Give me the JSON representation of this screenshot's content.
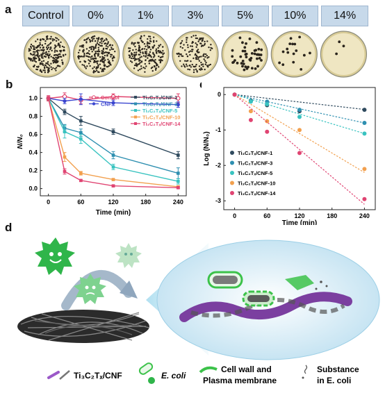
{
  "panel_a": {
    "letter": "a",
    "labels": [
      "Control",
      "0%",
      "1%",
      "3%",
      "5%",
      "10%",
      "14%"
    ]
  },
  "panel_d": {
    "letter": "d",
    "legend": {
      "material": "Ti₃C₂Tₓ/CNF",
      "ecoli": "E. coli",
      "cellwall_line1": "Cell wall and",
      "cellwall_line2": "Plasma membrane",
      "substance_line1": "Substance",
      "substance_line2": "in E. coli"
    }
  },
  "chart_data": [
    {
      "panel": "b",
      "type": "line",
      "xlabel": "Time (min)",
      "ylabel": "N/N₀",
      "x": [
        0,
        30,
        60,
        120,
        240
      ],
      "xticks": [
        0,
        60,
        120,
        180,
        240
      ],
      "yticks": [
        0.0,
        0.2,
        0.4,
        0.6,
        0.8,
        1.0
      ],
      "xlim": [
        -15,
        255
      ],
      "ylim": [
        -0.08,
        1.12
      ],
      "series": [
        {
          "name": "Control",
          "color": "#e0406a",
          "marker": "open-circle",
          "values": [
            1.0,
            1.02,
            0.98,
            1.02,
            1.0
          ],
          "errors": [
            0.03,
            0.04,
            0.04,
            0.03,
            0.05
          ]
        },
        {
          "name": "CNF",
          "color": "#3b46d0",
          "marker": "filled-circle",
          "values": [
            1.0,
            0.97,
            0.99,
            0.95,
            0.93
          ],
          "errors": [
            0.02,
            0.03,
            0.06,
            0.03,
            0.03
          ]
        },
        {
          "name": "Ti₃C₂Tₓ/CNF-1",
          "color": "#2f4a5e",
          "marker": "filled-square",
          "values": [
            1.0,
            0.85,
            0.75,
            0.63,
            0.37
          ],
          "errors": [
            0.02,
            0.03,
            0.05,
            0.03,
            0.04
          ]
        },
        {
          "name": "Ti₃C₂Tₓ/CNF-3",
          "color": "#2e8fb0",
          "marker": "filled-square",
          "values": [
            1.0,
            0.67,
            0.62,
            0.37,
            0.17
          ],
          "errors": [
            0.02,
            0.04,
            0.04,
            0.04,
            0.06
          ]
        },
        {
          "name": "Ti₃C₂Tₓ/CNF-5",
          "color": "#39c3c0",
          "marker": "filled-square",
          "values": [
            1.0,
            0.63,
            0.55,
            0.24,
            0.08
          ],
          "errors": [
            0.02,
            0.07,
            0.05,
            0.03,
            0.03
          ]
        },
        {
          "name": "Ti₃C₂Tₓ/CNF-10",
          "color": "#f2a04e",
          "marker": "filled-square",
          "values": [
            1.0,
            0.35,
            0.17,
            0.1,
            0.02
          ],
          "errors": [
            0.02,
            0.05,
            0.02,
            0.01,
            0.01
          ]
        },
        {
          "name": "Ti₃C₂Tₓ/CNF-14",
          "color": "#e04472",
          "marker": "filled-square",
          "values": [
            1.0,
            0.19,
            0.09,
            0.03,
            0.01
          ],
          "errors": [
            0.02,
            0.03,
            0.01,
            0.01,
            0.01
          ]
        }
      ]
    },
    {
      "panel": "c",
      "type": "scatter",
      "xlabel": "Time (min)",
      "ylabel": "Log (N/N₀)",
      "x": [
        0,
        30,
        60,
        120,
        240
      ],
      "xticks": [
        0,
        60,
        120,
        180,
        240
      ],
      "yticks": [
        0,
        -1,
        -2,
        -3
      ],
      "xlim": [
        -20,
        260
      ],
      "ylim": [
        -3.25,
        0.2
      ],
      "series": [
        {
          "name": "Ti₃C₂Tₓ/CNF-1",
          "color": "#2f4a5e",
          "values": [
            0,
            -0.17,
            -0.3,
            -0.47,
            -0.43
          ],
          "fit_end": -0.42
        },
        {
          "name": "Ti₃C₂Tₓ/CNF-3",
          "color": "#2e8fb0",
          "values": [
            0,
            -0.19,
            -0.2,
            -0.43,
            -0.8
          ],
          "fit_end": -0.8
        },
        {
          "name": "Ti₃C₂Tₓ/CNF-5",
          "color": "#39c3c0",
          "values": [
            0,
            -0.2,
            -0.27,
            -0.63,
            -1.1
          ],
          "fit_end": -1.1
        },
        {
          "name": "Ti₃C₂Tₓ/CNF-10",
          "color": "#f2a04e",
          "values": [
            0,
            -0.47,
            -0.75,
            -1.0,
            -2.1
          ],
          "fit_end": -2.2
        },
        {
          "name": "Ti₃C₂Tₓ/CNF-14",
          "color": "#e04472",
          "values": [
            0,
            -0.72,
            -1.05,
            -1.65,
            -2.95
          ],
          "fit_end": -3.1
        }
      ]
    }
  ]
}
